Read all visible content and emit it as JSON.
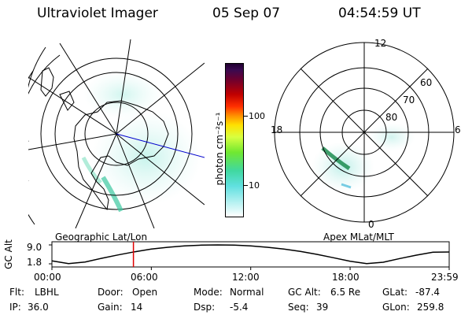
{
  "header": {
    "instrument": "Ultraviolet Imager",
    "date": "05 Sep 07",
    "time": "04:54:59 UT"
  },
  "left_map": {
    "caption": "Geographic Lat/Lon"
  },
  "colorbar": {
    "unit_label": "photon cm⁻²s⁻¹",
    "tick_labels": [
      "10",
      "100"
    ],
    "scale": "log"
  },
  "right_map": {
    "caption": "Apex MLat/MLT",
    "mlt_labels": {
      "top": "12",
      "bottom": "0",
      "left": "18",
      "right": "6"
    },
    "lat_labels": [
      "60",
      "70",
      "80"
    ]
  },
  "chart_data": {
    "type": "line",
    "ylabel": "GC Alt",
    "y_tick_labels": [
      "9.0",
      "1.8"
    ],
    "ylim": [
      1.8,
      9.0
    ],
    "x_tick_labels": [
      "00:00",
      "06:00",
      "12:00",
      "18:00",
      "23:59"
    ],
    "x_hours": [
      0,
      1,
      2,
      3,
      4,
      5,
      6,
      7,
      8,
      9,
      10,
      11,
      12,
      13,
      14,
      15,
      16,
      17,
      18,
      19,
      20,
      21,
      22,
      23,
      23.98
    ],
    "altitude_re": [
      2.9,
      1.9,
      2.5,
      3.9,
      5.2,
      6.4,
      7.4,
      8.1,
      8.6,
      8.9,
      9.0,
      8.9,
      8.6,
      8.1,
      7.4,
      6.5,
      5.4,
      4.1,
      2.8,
      1.9,
      2.4,
      3.8,
      5.1,
      6.2,
      6.3
    ],
    "current_time_hours": 4.92,
    "marker_color": "#e00000"
  },
  "status": {
    "flt_label": "Flt:",
    "flt_value": "LBHL",
    "ip_label": "IP:",
    "ip_value": "36.0",
    "door_label": "Door:",
    "door_value": "Open",
    "gain_label": "Gain:",
    "gain_value": "14",
    "mode_label": "Mode:",
    "mode_value": "Normal",
    "dsp_label": "Dsp:",
    "dsp_value": "-5.4",
    "gcalt_label": "GC Alt:",
    "gcalt_value": "6.5 Re",
    "seq_label": "Seq:",
    "seq_value": "39",
    "glat_label": "GLat:",
    "glat_value": "-87.4",
    "glon_label": "GLon:",
    "glon_value": "259.8"
  }
}
